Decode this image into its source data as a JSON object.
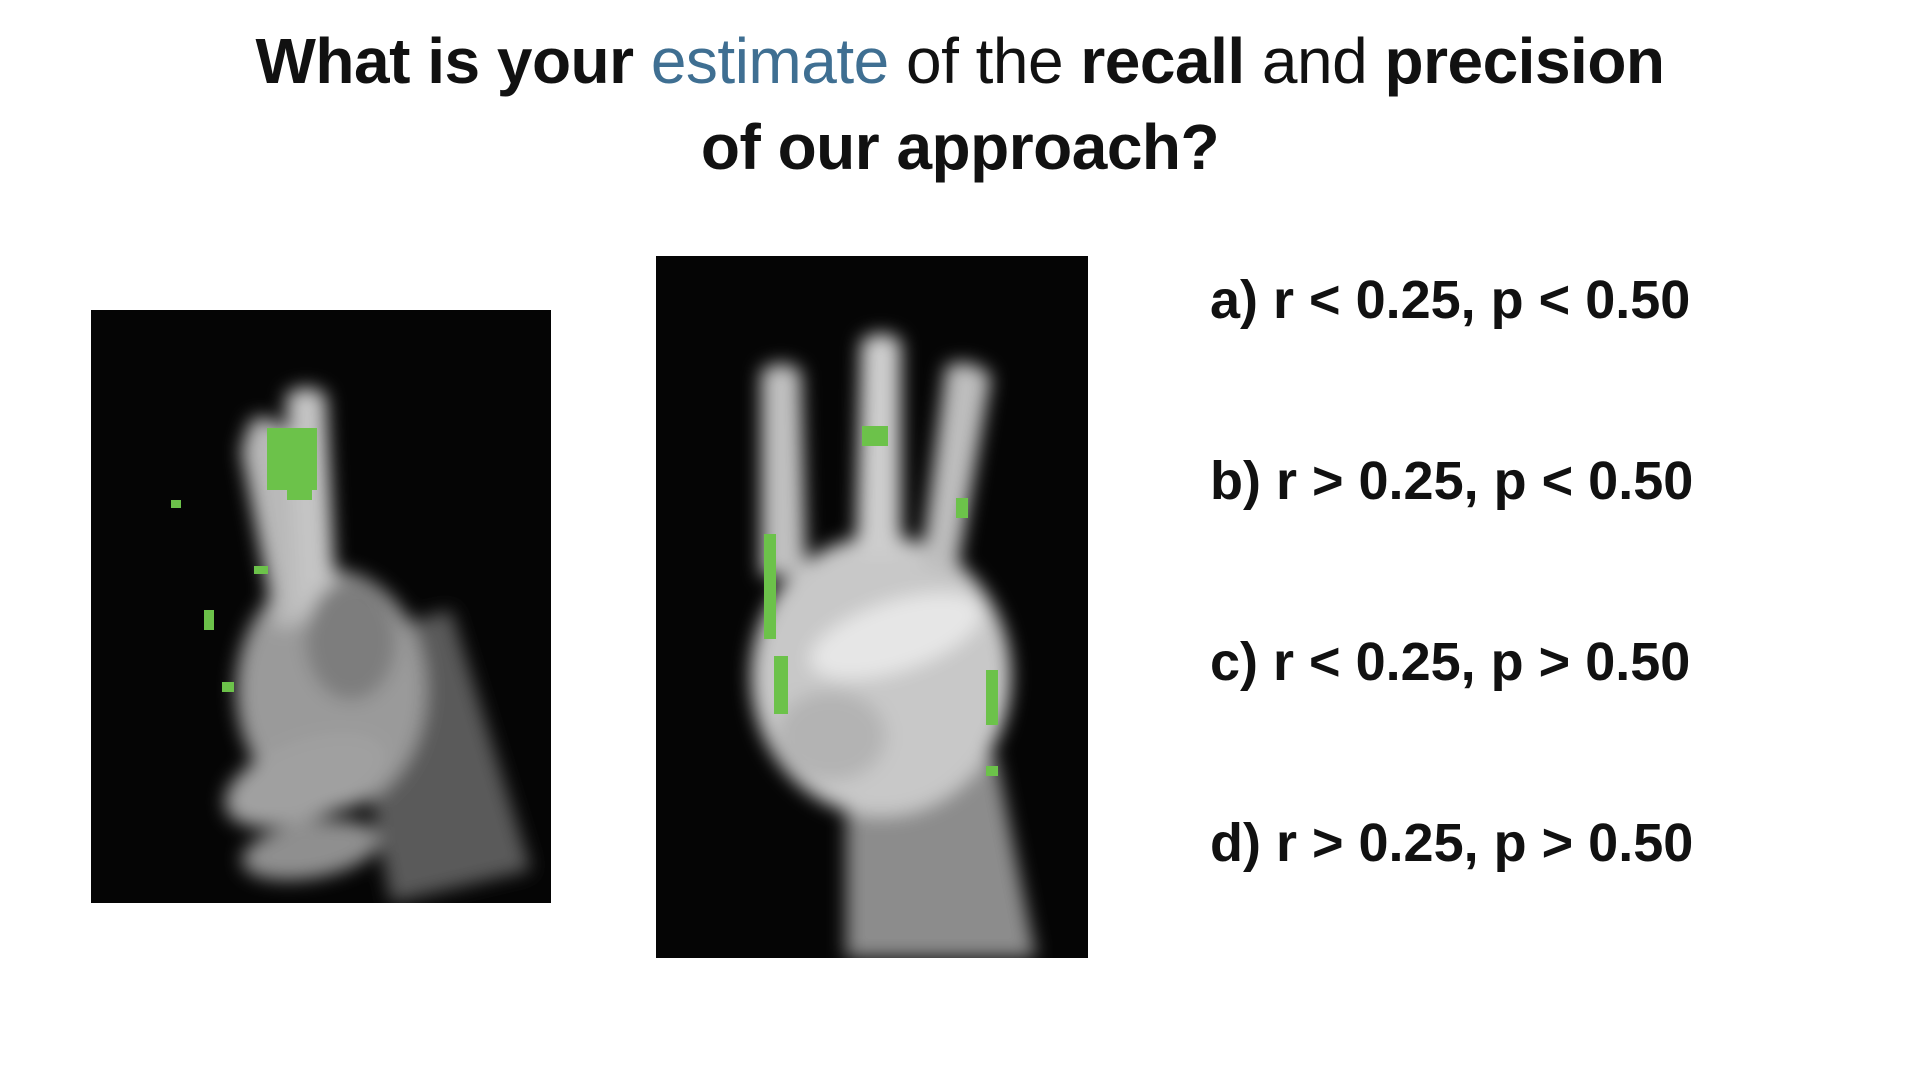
{
  "title": {
    "line1_part1": "What is your ",
    "line1_accent": "estimate",
    "line1_part2": " of the ",
    "line1_bold1": "recall",
    "line1_part3": " and ",
    "line1_bold2": "precision",
    "line2": "of our approach?"
  },
  "colors": {
    "accent": "#3f6f92",
    "highlight": "#6cc24a",
    "photo_bg": "#050505"
  },
  "options": [
    {
      "label": "a) r < 0.25, p < 0.50"
    },
    {
      "label": "b) r > 0.25, p < 0.50"
    },
    {
      "label": "c) r < 0.25, p > 0.50"
    },
    {
      "label": "d) r > 0.25, p > 0.50"
    }
  ],
  "images": [
    {
      "name": "hand-two-fingers",
      "highlight_color": "#6cc24a"
    },
    {
      "name": "hand-three-fingers",
      "highlight_color": "#6cc24a"
    }
  ]
}
